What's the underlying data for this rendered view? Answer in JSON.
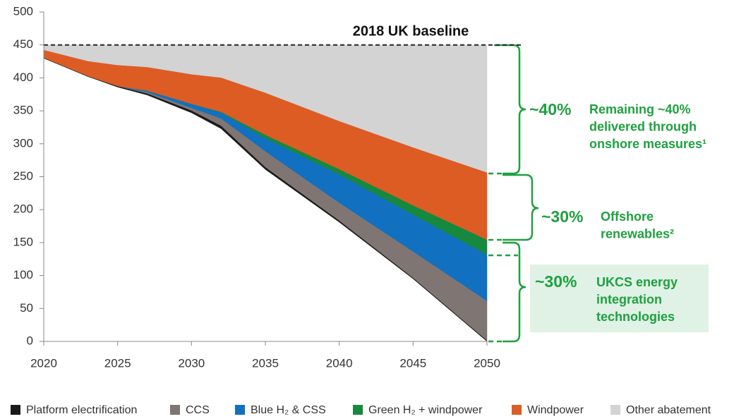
{
  "chart_data": {
    "type": "area",
    "title": "2018 UK baseline",
    "baseline": 450,
    "stacked": true,
    "x": [
      2020,
      2023,
      2025,
      2027,
      2030,
      2032,
      2035,
      2040,
      2045,
      2050
    ],
    "series": [
      {
        "name": "Platform electrification",
        "color": "#1a1a1a",
        "values": [
          0,
          0,
          1,
          2,
          3,
          4,
          3,
          2,
          1,
          1
        ]
      },
      {
        "name": "CCS",
        "color": "#7f7573",
        "values": [
          0,
          0,
          0,
          2,
          4,
          11,
          24,
          27,
          40,
          60
        ]
      },
      {
        "name": "Blue H₂ & CSS",
        "color": "#1170c0",
        "values": [
          0,
          0,
          0,
          2,
          6,
          9,
          20,
          43,
          56,
          70
        ]
      },
      {
        "name": "Green H₂ + windpower",
        "color": "#16893f",
        "values": [
          0,
          0,
          0,
          0,
          0,
          1,
          5,
          8,
          14,
          23
        ]
      },
      {
        "name": "Windpower",
        "color": "#dd5c24",
        "values": [
          12,
          23,
          32,
          36,
          45,
          52,
          64,
          73,
          88,
          102
        ]
      },
      {
        "name": "Other abatement",
        "color": "#d3d3d3",
        "values": [
          8,
          25,
          31,
          34,
          45,
          50,
          73,
          116,
          156,
          194
        ]
      }
    ],
    "xlim": [
      2020,
      2050
    ],
    "xticks": [
      2020,
      2025,
      2030,
      2035,
      2040,
      2045,
      2050
    ],
    "ylim": [
      0,
      500
    ],
    "yticks": [
      0,
      50,
      100,
      150,
      200,
      250,
      300,
      350,
      400,
      450,
      500
    ],
    "annotations": [
      {
        "percent": "~40%",
        "lines": [
          "Remaining ~40%",
          "delivered through",
          "onshore measures¹"
        ]
      },
      {
        "percent": "~30%",
        "lines": [
          "Offshore",
          "renewables²"
        ]
      },
      {
        "percent": "~30%",
        "lines": [
          "UKCS energy",
          "integration",
          "technologies"
        ]
      }
    ]
  }
}
